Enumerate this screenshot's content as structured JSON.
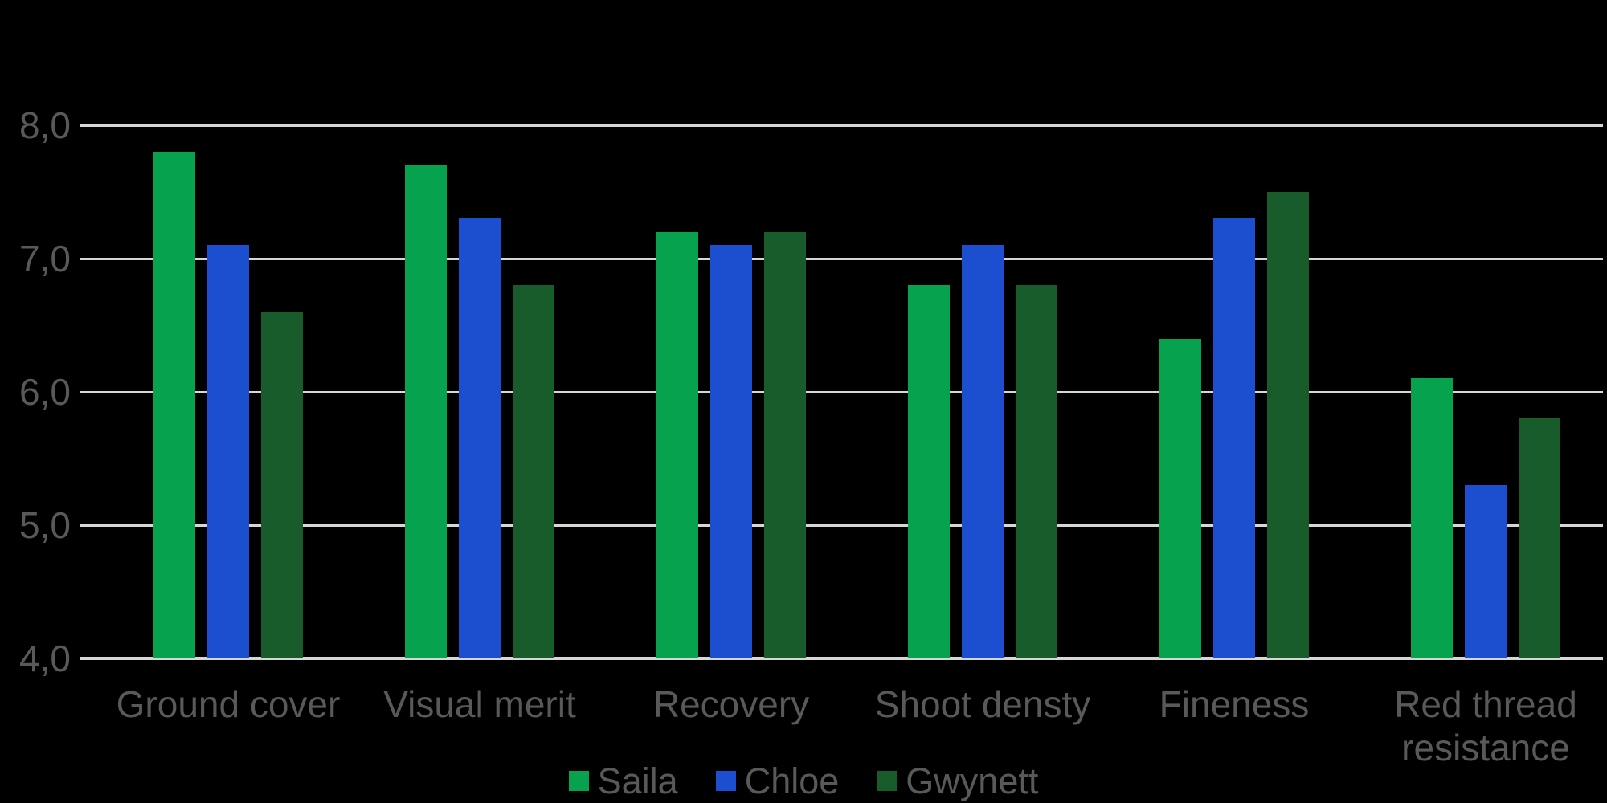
{
  "chart_data": {
    "type": "bar",
    "title": "",
    "categories": [
      "Ground cover",
      "Visual merit",
      "Recovery",
      "Shoot densty",
      "Fineness",
      "Red thread resistance"
    ],
    "series": [
      {
        "name": "Saila",
        "color": "#06a24d",
        "values": [
          7.8,
          7.7,
          7.2,
          6.8,
          6.4,
          6.1
        ]
      },
      {
        "name": "Chloe",
        "color": "#1c4ed0",
        "values": [
          7.1,
          7.3,
          7.1,
          7.1,
          7.3,
          5.3
        ]
      },
      {
        "name": "Gwynett",
        "color": "#195c2b",
        "values": [
          6.6,
          6.8,
          7.2,
          6.8,
          7.5,
          5.8
        ]
      }
    ],
    "y_axis": {
      "min": 4.0,
      "max": 8.0,
      "step": 1.0,
      "tick_labels": [
        "4,0",
        "5,0",
        "6,0",
        "7,0",
        "8,0"
      ]
    },
    "grid": true,
    "legend_position": "bottom"
  },
  "style": {
    "background": "#000000",
    "gridline_color": "#d6d6d6",
    "axis_line_color": "#d6d6d6",
    "label_color": "#595959"
  }
}
